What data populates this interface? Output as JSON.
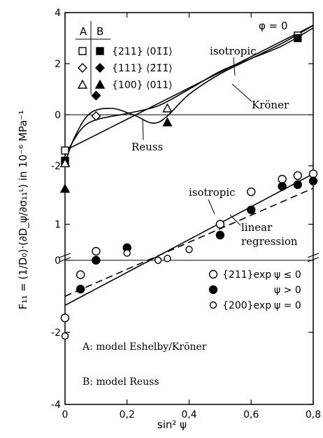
{
  "chart_data": {
    "type": "scatter",
    "phi_label": "φ = 0",
    "xlabel": "sin² ψ",
    "ylabel": "F₁₁ = (1/D₀)·(∂D_ψ/∂σ₁₁ᴸ) in 10⁻⁶ MPa⁻¹",
    "xlim": [
      0,
      0.8
    ],
    "x_ticks": [
      "0",
      "0,2",
      "0,4",
      "0,6",
      "0,8"
    ],
    "x_tick_values": [
      0,
      0.2,
      0.4,
      0.6,
      0.8
    ],
    "upper_panel": {
      "ylim": [
        -2,
        4
      ],
      "y_ticks": [
        "4",
        "2",
        "0",
        "-2"
      ],
      "y_tick_values": [
        4,
        2,
        0,
        -2
      ],
      "legend": {
        "header_a": "A",
        "header_b": "B",
        "rows": [
          {
            "open_symbol": "□",
            "filled_symbol": "■",
            "label": "{211} ⟨01̄1̄⟩"
          },
          {
            "open_symbol": "◇",
            "filled_symbol": "◆",
            "label": "{111} ⟨2̄1̄1̄⟩"
          },
          {
            "open_symbol": "△",
            "filled_symbol": "▲",
            "label": "{100} ⟨011⟩"
          }
        ]
      },
      "curve_labels": {
        "isotropic": "isotropic",
        "kroner": "Kröner",
        "reuss": "Reuss"
      },
      "series": [
        {
          "name": "isotropic",
          "style": "line",
          "x": [
            0,
            0.8
          ],
          "y": [
            -1.4,
            3.5
          ]
        },
        {
          "name": "Kröner",
          "style": "curve",
          "x": [
            0,
            0.05,
            0.1,
            0.2,
            0.3,
            0.4,
            0.5,
            0.6,
            0.7,
            0.8
          ],
          "y": [
            -1.6,
            -0.6,
            -0.2,
            0.05,
            0.35,
            1.0,
            1.7,
            2.2,
            2.7,
            3.4
          ]
        },
        {
          "name": "Reuss",
          "style": "curve",
          "x": [
            0,
            0.03,
            0.08,
            0.15,
            0.22,
            0.3,
            0.4,
            0.5,
            0.6,
            0.7,
            0.8
          ],
          "y": [
            -1.9,
            -0.9,
            0.05,
            0.25,
            0.0,
            -0.3,
            0.8,
            1.6,
            2.2,
            2.8,
            3.5
          ]
        },
        {
          "name": "{211} A",
          "marker": "square-open",
          "x": [
            0,
            0.75
          ],
          "y": [
            -1.4,
            3.1
          ]
        },
        {
          "name": "{211} B",
          "marker": "square-filled",
          "x": [
            0,
            0.75
          ],
          "y": [
            -1.8,
            3.0
          ]
        },
        {
          "name": "{111} A",
          "marker": "diamond-open",
          "x": [
            0.1
          ],
          "y": [
            -0.05
          ]
        },
        {
          "name": "{111} B",
          "marker": "diamond-filled",
          "x": [
            0.1
          ],
          "y": [
            0.75
          ]
        },
        {
          "name": "{100} A",
          "marker": "triangle-open",
          "x": [
            0,
            0.33
          ],
          "y": [
            -1.9,
            0.25
          ]
        },
        {
          "name": "{100} B",
          "marker": "triangle-filled",
          "x": [
            0,
            0.33
          ],
          "y": [
            -2.9,
            -0.3
          ]
        }
      ]
    },
    "lower_panel": {
      "ylim": [
        -4,
        2
      ],
      "y_ticks": [
        "1",
        "0",
        "-2",
        "-4"
      ],
      "y_tick_values": [
        1,
        0,
        -2,
        -4
      ],
      "legend": {
        "rows": [
          {
            "marker": "circle-open",
            "label": "{211}exp",
            "condition": "ψ ≤ 0"
          },
          {
            "marker": "circle-filled",
            "label": "",
            "condition": "ψ > 0"
          },
          {
            "marker": "circle-open-small",
            "label": "{200}exp",
            "condition": "ψ = 0"
          }
        ]
      },
      "curve_labels": {
        "isotropic": "isotropic",
        "linear_regression_1": "linear",
        "linear_regression_2": "regression"
      },
      "series": [
        {
          "name": "isotropic",
          "style": "line",
          "x": [
            0,
            0.8
          ],
          "y": [
            -1.25,
            2.4
          ]
        },
        {
          "name": "linear regression",
          "style": "dashed",
          "x": [
            0,
            0.8
          ],
          "y": [
            -1.0,
            2.0
          ]
        },
        {
          "name": "{211}exp ψ≤0",
          "marker": "circle-open",
          "x": [
            0,
            0.05,
            0.1,
            0.5,
            0.6,
            0.7,
            0.75,
            0.8
          ],
          "y": [
            -1.6,
            -0.4,
            0.25,
            1.0,
            1.9,
            2.25,
            2.35,
            2.4
          ]
        },
        {
          "name": "{211}exp ψ>0",
          "marker": "circle-filled",
          "x": [
            0.05,
            0.1,
            0.2,
            0.5,
            0.6,
            0.7,
            0.75,
            0.8
          ],
          "y": [
            -0.8,
            0.0,
            0.35,
            0.7,
            1.4,
            2.05,
            2.1,
            2.2
          ]
        },
        {
          "name": "{200}exp ψ=0",
          "marker": "circle-open-small",
          "x": [
            0,
            0.2,
            0.3,
            0.33,
            0.4
          ],
          "y": [
            -2.1,
            0.2,
            0.0,
            0.05,
            0.3
          ]
        }
      ]
    },
    "annotations": {
      "model_a": "A: model Eshelby/Kröner",
      "model_b": "B: model Reuss"
    }
  }
}
